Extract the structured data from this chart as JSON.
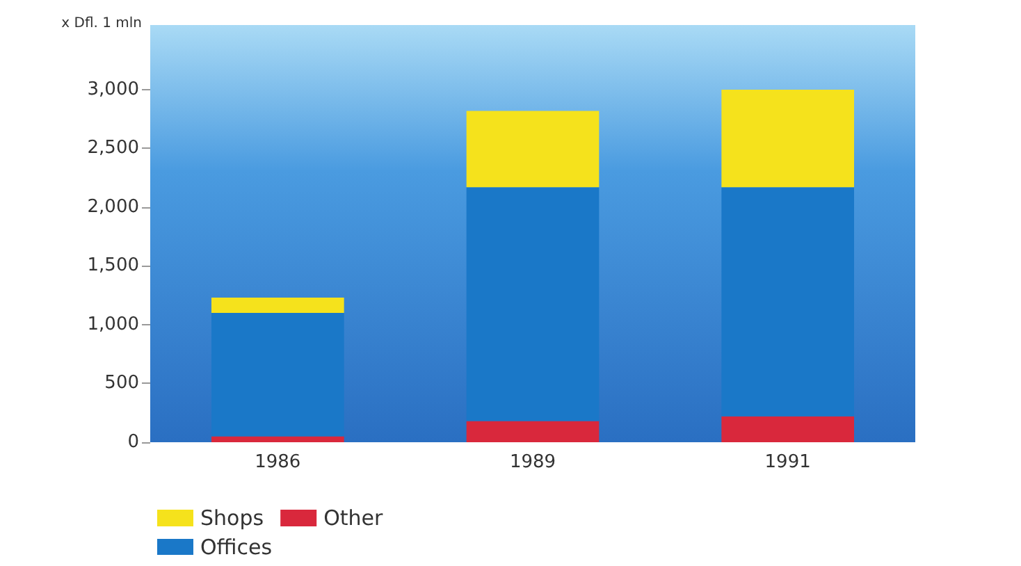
{
  "chart_data": {
    "type": "bar",
    "stacked": true,
    "ylabel": "x Dfl. 1 mln",
    "categories": [
      "1986",
      "1989",
      "1991"
    ],
    "series": [
      {
        "name": "Other",
        "color": "#d9283c",
        "values": [
          50,
          180,
          220
        ]
      },
      {
        "name": "Offices",
        "color": "#1a78c8",
        "values": [
          1050,
          1990,
          1950
        ]
      },
      {
        "name": "Shops",
        "color": "#f5e21c",
        "values": [
          130,
          650,
          830
        ]
      }
    ],
    "ylim": [
      0,
      3550
    ],
    "yticks": [
      0,
      500,
      {
        "value": 1000,
        "label": "1,000"
      },
      {
        "value": 1500,
        "label": "1,500"
      },
      {
        "value": 2000,
        "label": "2,000"
      },
      {
        "value": 2500,
        "label": "2,500"
      },
      {
        "value": 3000,
        "label": "3,000"
      }
    ],
    "grid": false,
    "legend": "bottom left"
  }
}
